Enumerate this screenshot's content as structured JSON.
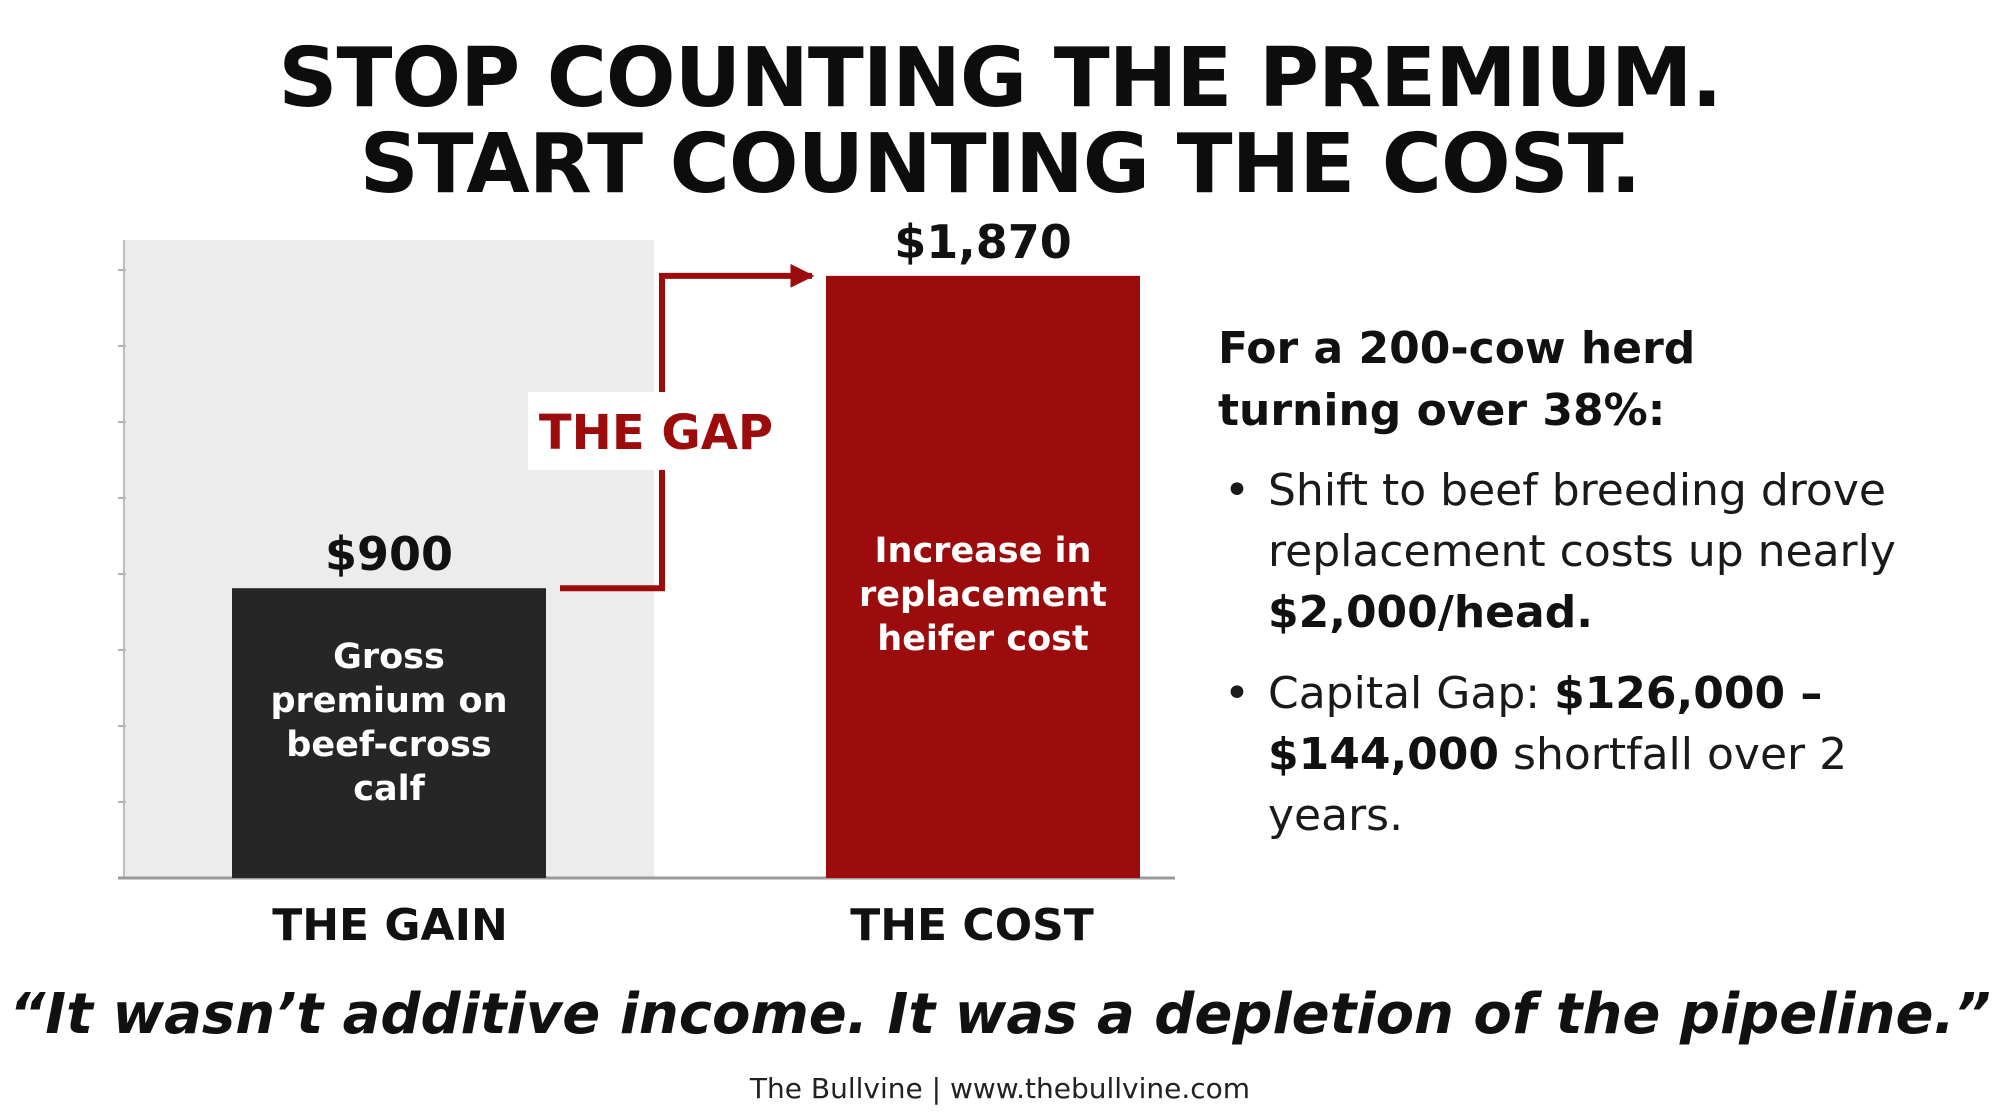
{
  "headline": {
    "line1": "STOP COUNTING THE PREMIUM.",
    "line2": "START COUNTING THE COST."
  },
  "chart_data": {
    "type": "bar",
    "categories": [
      "THE GAIN",
      "THE COST"
    ],
    "values": [
      900,
      1870
    ],
    "value_labels": [
      "$900",
      "$1,870"
    ],
    "bar_labels": [
      [
        "Gross",
        "premium on",
        "beef-cross",
        "calf"
      ],
      [
        "Increase in",
        "replacement",
        "heifer cost"
      ]
    ],
    "annotation": "THE GAP",
    "ylim": [
      0,
      2000
    ],
    "colors": {
      "gain": "#262626",
      "cost": "#9c0c0c",
      "panel": "#ececec",
      "gap": "#9c0c0c"
    }
  },
  "info": {
    "heading_line1": "For a 200-cow herd",
    "heading_line2": "turning over 38%:",
    "bullet_symbol": "•",
    "bullet1_text": "Shift to beef breeding drove replacement costs up nearly ",
    "bullet1_bold": "$2,000/head.",
    "bullet2_text1": "Capital Gap: ",
    "bullet2_bold": "$126,000 – $144,000",
    "bullet2_text2": " shortfall over 2 years."
  },
  "quote": "“It wasn’t additive income. It was a depletion of the pipeline.”",
  "credit": "The Bullvine | www.thebullvine.com"
}
